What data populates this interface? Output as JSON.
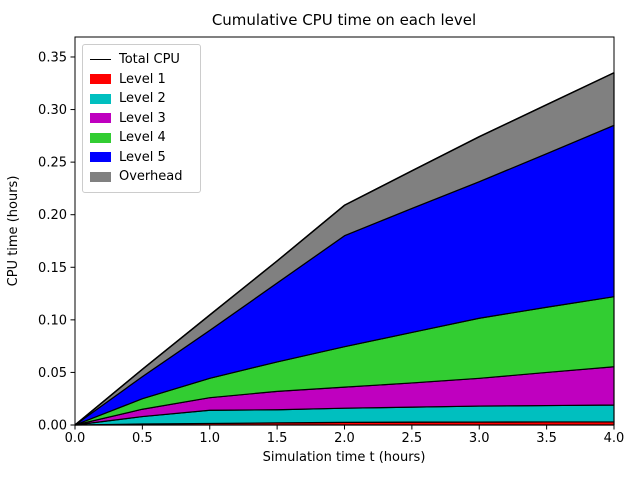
{
  "figure": {
    "background": "#ffffff"
  },
  "chart_data": {
    "type": "area",
    "stacked": true,
    "title": "Cumulative CPU time on each level",
    "xlabel": "Simulation time t (hours)",
    "ylabel": "CPU time (hours)",
    "xlim": [
      0,
      4
    ],
    "ylim": [
      0,
      0.369
    ],
    "grid": false,
    "edge_color": "#000000",
    "xticks": [
      0,
      0.5,
      1.0,
      1.5,
      2.0,
      2.5,
      3.0,
      3.5,
      4.0
    ],
    "xtick_labels": [
      "0.0",
      "0.5",
      "1.0",
      "1.5",
      "2.0",
      "2.5",
      "3.0",
      "3.5",
      "4.0"
    ],
    "yticks": [
      0.0,
      0.05,
      0.1,
      0.15,
      0.2,
      0.25,
      0.3,
      0.35
    ],
    "ytick_labels": [
      "0.00",
      "0.05",
      "0.10",
      "0.15",
      "0.20",
      "0.25",
      "0.30",
      "0.35"
    ],
    "x": [
      0,
      0.5,
      1.0,
      1.5,
      2.0,
      2.5,
      3.0,
      3.5,
      4.0
    ],
    "series": [
      {
        "name": "Level 1",
        "color": "#ff0000",
        "values": [
          0,
          0.001,
          0.0015,
          0.002,
          0.0025,
          0.0027,
          0.0028,
          0.0029,
          0.003
        ]
      },
      {
        "name": "Level 2",
        "color": "#00bfbf",
        "values": [
          0,
          0.007,
          0.0125,
          0.0125,
          0.0135,
          0.0143,
          0.0152,
          0.0156,
          0.016
        ]
      },
      {
        "name": "Level 3",
        "color": "#bf00bf",
        "values": [
          0,
          0.007,
          0.012,
          0.0175,
          0.02,
          0.023,
          0.0264,
          0.0315,
          0.0364
        ]
      },
      {
        "name": "Level 4",
        "color": "#32cd32",
        "values": [
          0,
          0.01,
          0.0184,
          0.028,
          0.0385,
          0.048,
          0.0571,
          0.062,
          0.0666
        ]
      },
      {
        "name": "Level 5",
        "color": "#0000ff",
        "values": [
          0,
          0.021,
          0.0456,
          0.075,
          0.1055,
          0.118,
          0.1299,
          0.146,
          0.163
        ]
      },
      {
        "name": "Overhead",
        "color": "#808080",
        "values": [
          0,
          0.007,
          0.0146,
          0.021,
          0.029,
          0.0357,
          0.0428,
          0.0466,
          0.05
        ]
      }
    ],
    "total_line": {
      "name": "Total CPU",
      "color": "#000000",
      "values": [
        0,
        0.053,
        0.1046,
        0.156,
        0.209,
        0.2417,
        0.2742,
        0.3046,
        0.335
      ]
    },
    "legend": {
      "position": "upper left",
      "entries": [
        {
          "label": "Total CPU",
          "kind": "line",
          "color": "#000000"
        },
        {
          "label": "Level 1",
          "kind": "patch",
          "color": "#ff0000"
        },
        {
          "label": "Level 2",
          "kind": "patch",
          "color": "#00bfbf"
        },
        {
          "label": "Level 3",
          "kind": "patch",
          "color": "#bf00bf"
        },
        {
          "label": "Level 4",
          "kind": "patch",
          "color": "#32cd32"
        },
        {
          "label": "Level 5",
          "kind": "patch",
          "color": "#0000ff"
        },
        {
          "label": "Overhead",
          "kind": "patch",
          "color": "#808080"
        }
      ]
    }
  }
}
